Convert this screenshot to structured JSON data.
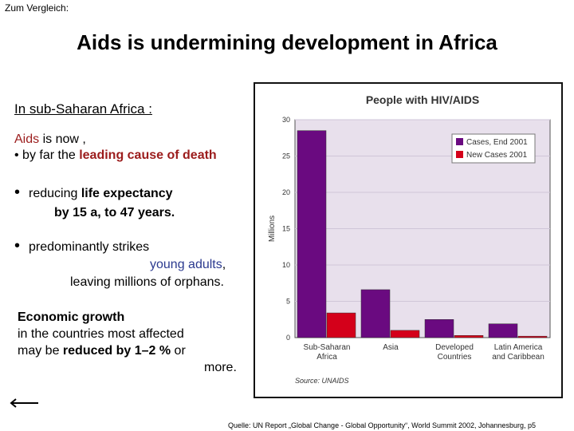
{
  "slide": {
    "label": "Zum Vergleich:",
    "title": "Aids is undermining development in Africa",
    "intro": "In sub-Saharan Africa :",
    "line1_a": "Aids",
    "line1_b": " is now ,",
    "line2_a": "• by far the ",
    "line2_b": "leading cause of death",
    "bullet": "•",
    "b1_a": "reducing ",
    "b1_b": "life expectancy",
    "b1_c": "by 15 a,  to 47 years.",
    "b2_a": "predominantly strikes",
    "b2_b": "young adults",
    "b2_c": ",",
    "b2_d": "leaving millions of orphans.",
    "econ1": "Economic growth",
    "econ2": "in the countries most affected",
    "econ3_a": "may be ",
    "econ3_b": "reduced by 1–2 %",
    "econ3_c": "  or",
    "econ4": "more.",
    "footer": "Quelle: UN Report „Global Change - Global Opportunity“, World Summit 2002, Johannesburg,  p5"
  },
  "chart_data": {
    "type": "bar",
    "title": "People with HIV/AIDS",
    "ylabel": "Millions",
    "source": "Source: UNAIDS",
    "ylim": [
      0,
      30
    ],
    "yticks": [
      0,
      5,
      10,
      15,
      20,
      25,
      30
    ],
    "grid": true,
    "legend_position": "top-right",
    "categories": [
      [
        "Sub-Saharan",
        "Africa"
      ],
      [
        "Asia"
      ],
      [
        "Developed",
        "Countries"
      ],
      [
        "Latin America",
        "and Caribbean"
      ]
    ],
    "series": [
      {
        "name": "Cases, End 2001",
        "color": "#6a0a80",
        "values": [
          28.5,
          6.6,
          2.5,
          1.9
        ]
      },
      {
        "name": "New Cases 2001",
        "color": "#d4001a",
        "values": [
          3.4,
          1.0,
          0.3,
          0.2
        ]
      }
    ]
  },
  "colors": {
    "plot_background": "#e8e0ec",
    "grid": "#cfc6d8"
  }
}
